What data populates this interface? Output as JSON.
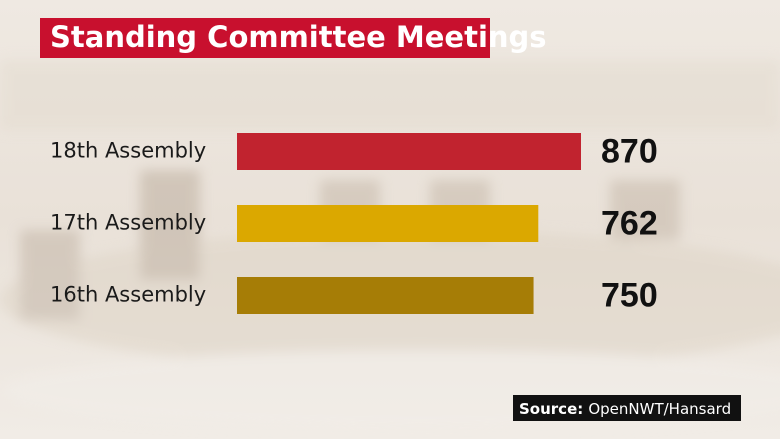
{
  "chart_data": {
    "type": "bar",
    "orientation": "horizontal",
    "title": "Standing Committee Meetings",
    "categories": [
      "18th Assembly",
      "17th Assembly",
      "16th Assembly"
    ],
    "values": [
      870,
      762,
      750
    ],
    "colors": [
      "#c1232f",
      "#dba800",
      "#a67d06"
    ],
    "source": {
      "label": "Source:",
      "text": "OpenNWT/Hansard"
    }
  }
}
